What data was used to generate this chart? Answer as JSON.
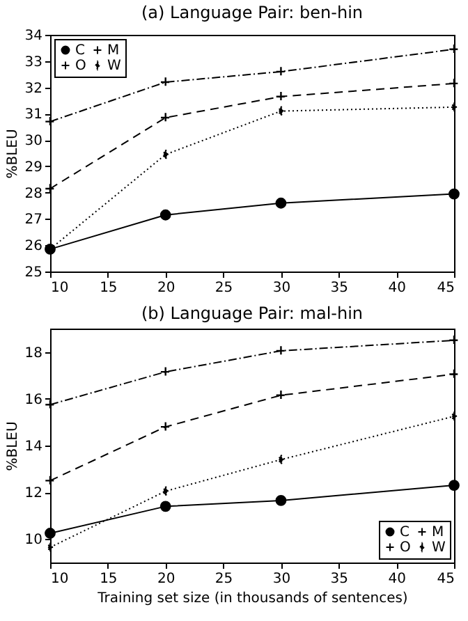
{
  "chart_data": [
    {
      "type": "line",
      "title": "(a) Language Pair: ben-hin",
      "ylabel": "%BLEU",
      "x": [
        10,
        20,
        30,
        45
      ],
      "xlim": [
        10,
        45
      ],
      "xticks": [
        10,
        15,
        20,
        25,
        30,
        35,
        40,
        45
      ],
      "ylim": [
        25,
        34
      ],
      "yticks": [
        25,
        26,
        27,
        28,
        29,
        30,
        31,
        32,
        33,
        34
      ],
      "grid": false,
      "legend": "top left",
      "series": [
        {
          "name": "C",
          "color": "#000000",
          "marker": "circle",
          "line_style": "solid",
          "values": [
            25.85,
            27.15,
            27.6,
            27.95
          ]
        },
        {
          "name": "M",
          "color": "#000000",
          "marker": "cross",
          "line_style": "dashed",
          "values": [
            28.15,
            30.85,
            31.65,
            32.15
          ]
        },
        {
          "name": "O",
          "color": "#000000",
          "marker": "cross",
          "line_style": "dashdot",
          "values": [
            30.7,
            32.2,
            32.6,
            33.45
          ]
        },
        {
          "name": "W",
          "color": "#000000",
          "marker": "diamond",
          "line_style": "dotted",
          "values": [
            25.85,
            29.45,
            31.1,
            31.25
          ]
        }
      ]
    },
    {
      "type": "line",
      "title": "(b) Language Pair: mal-hin",
      "xlabel": "Training set size (in thousands of sentences)",
      "ylabel": "%BLEU",
      "x": [
        10,
        20,
        30,
        45
      ],
      "xlim": [
        10,
        45
      ],
      "xticks": [
        10,
        15,
        20,
        25,
        30,
        35,
        40,
        45
      ],
      "ylim": [
        9,
        19
      ],
      "yticks": [
        10,
        12,
        14,
        16,
        18
      ],
      "grid": false,
      "legend": "bottom right",
      "series": [
        {
          "name": "C",
          "color": "#000000",
          "marker": "circle",
          "line_style": "solid",
          "values": [
            10.25,
            11.4,
            11.65,
            12.3
          ]
        },
        {
          "name": "M",
          "color": "#000000",
          "marker": "cross",
          "line_style": "dashed",
          "values": [
            12.5,
            14.8,
            16.15,
            17.05
          ]
        },
        {
          "name": "O",
          "color": "#000000",
          "marker": "cross",
          "line_style": "dashdot",
          "values": [
            15.75,
            17.15,
            18.05,
            18.5
          ]
        },
        {
          "name": "W",
          "color": "#000000",
          "marker": "diamond",
          "line_style": "dotted",
          "values": [
            9.65,
            12.05,
            13.4,
            15.25
          ]
        }
      ]
    }
  ]
}
